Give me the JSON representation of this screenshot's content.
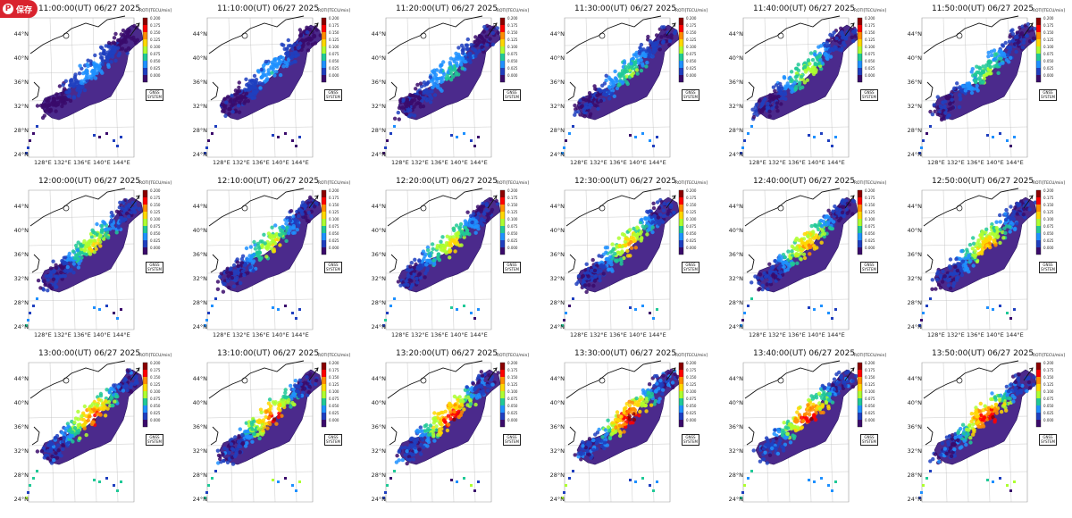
{
  "save_button": {
    "label": "保存",
    "icon": "pin-icon"
  },
  "colorbar": {
    "label": "ROTI[TECU/min]",
    "ticks": [
      "0.200",
      "0.175",
      "0.150",
      "0.125",
      "0.100",
      "0.075",
      "0.050",
      "0.025",
      "0.000"
    ],
    "colors": [
      "#8b0000",
      "#ff0000",
      "#ff8c00",
      "#ffd700",
      "#adff2f",
      "#20c997",
      "#1e90ff",
      "#1f3fbf",
      "#3a0a6b"
    ],
    "range": [
      0.0,
      0.2
    ]
  },
  "system_label": [
    "GNSS",
    "SYSTEM"
  ],
  "axes": {
    "lat_labels": [
      "44°N",
      "40°N",
      "36°N",
      "32°N",
      "28°N",
      "24°N"
    ],
    "lon_labels": [
      "128°E",
      "132°E",
      "136°E",
      "140°E",
      "144°E"
    ]
  },
  "panels": [
    {
      "title": "11:00:00(UT) 06/27 2025",
      "activity": 0.25,
      "show_lon": true
    },
    {
      "title": "11:10:00(UT) 06/27 2025",
      "activity": 0.28,
      "show_lon": true
    },
    {
      "title": "11:20:00(UT) 06/27 2025",
      "activity": 0.35,
      "show_lon": true
    },
    {
      "title": "11:30:00(UT) 06/27 2025",
      "activity": 0.42,
      "show_lon": true
    },
    {
      "title": "11:40:00(UT) 06/27 2025",
      "activity": 0.5,
      "show_lon": true
    },
    {
      "title": "11:50:00(UT) 06/27 2025",
      "activity": 0.45,
      "show_lon": true
    },
    {
      "title": "12:00:00(UT) 06/27 2025",
      "activity": 0.55,
      "show_lon": true
    },
    {
      "title": "12:10:00(UT) 06/27 2025",
      "activity": 0.55,
      "show_lon": true
    },
    {
      "title": "12:20:00(UT) 06/27 2025",
      "activity": 0.6,
      "show_lon": true
    },
    {
      "title": "12:30:00(UT) 06/27 2025",
      "activity": 0.65,
      "show_lon": true
    },
    {
      "title": "12:40:00(UT) 06/27 2025",
      "activity": 0.7,
      "show_lon": true
    },
    {
      "title": "12:50:00(UT) 06/27 2025",
      "activity": 0.65,
      "show_lon": true
    },
    {
      "title": "13:00:00(UT) 06/27 2025",
      "activity": 0.8,
      "show_lon": false
    },
    {
      "title": "13:10:00(UT) 06/27 2025",
      "activity": 0.8,
      "show_lon": false
    },
    {
      "title": "13:20:00(UT) 06/27 2025",
      "activity": 0.85,
      "show_lon": false
    },
    {
      "title": "13:30:00(UT) 06/27 2025",
      "activity": 0.9,
      "show_lon": false
    },
    {
      "title": "13:40:00(UT) 06/27 2025",
      "activity": 0.85,
      "show_lon": false
    },
    {
      "title": "13:50:00(UT) 06/27 2025",
      "activity": 0.85,
      "show_lon": false
    }
  ]
}
